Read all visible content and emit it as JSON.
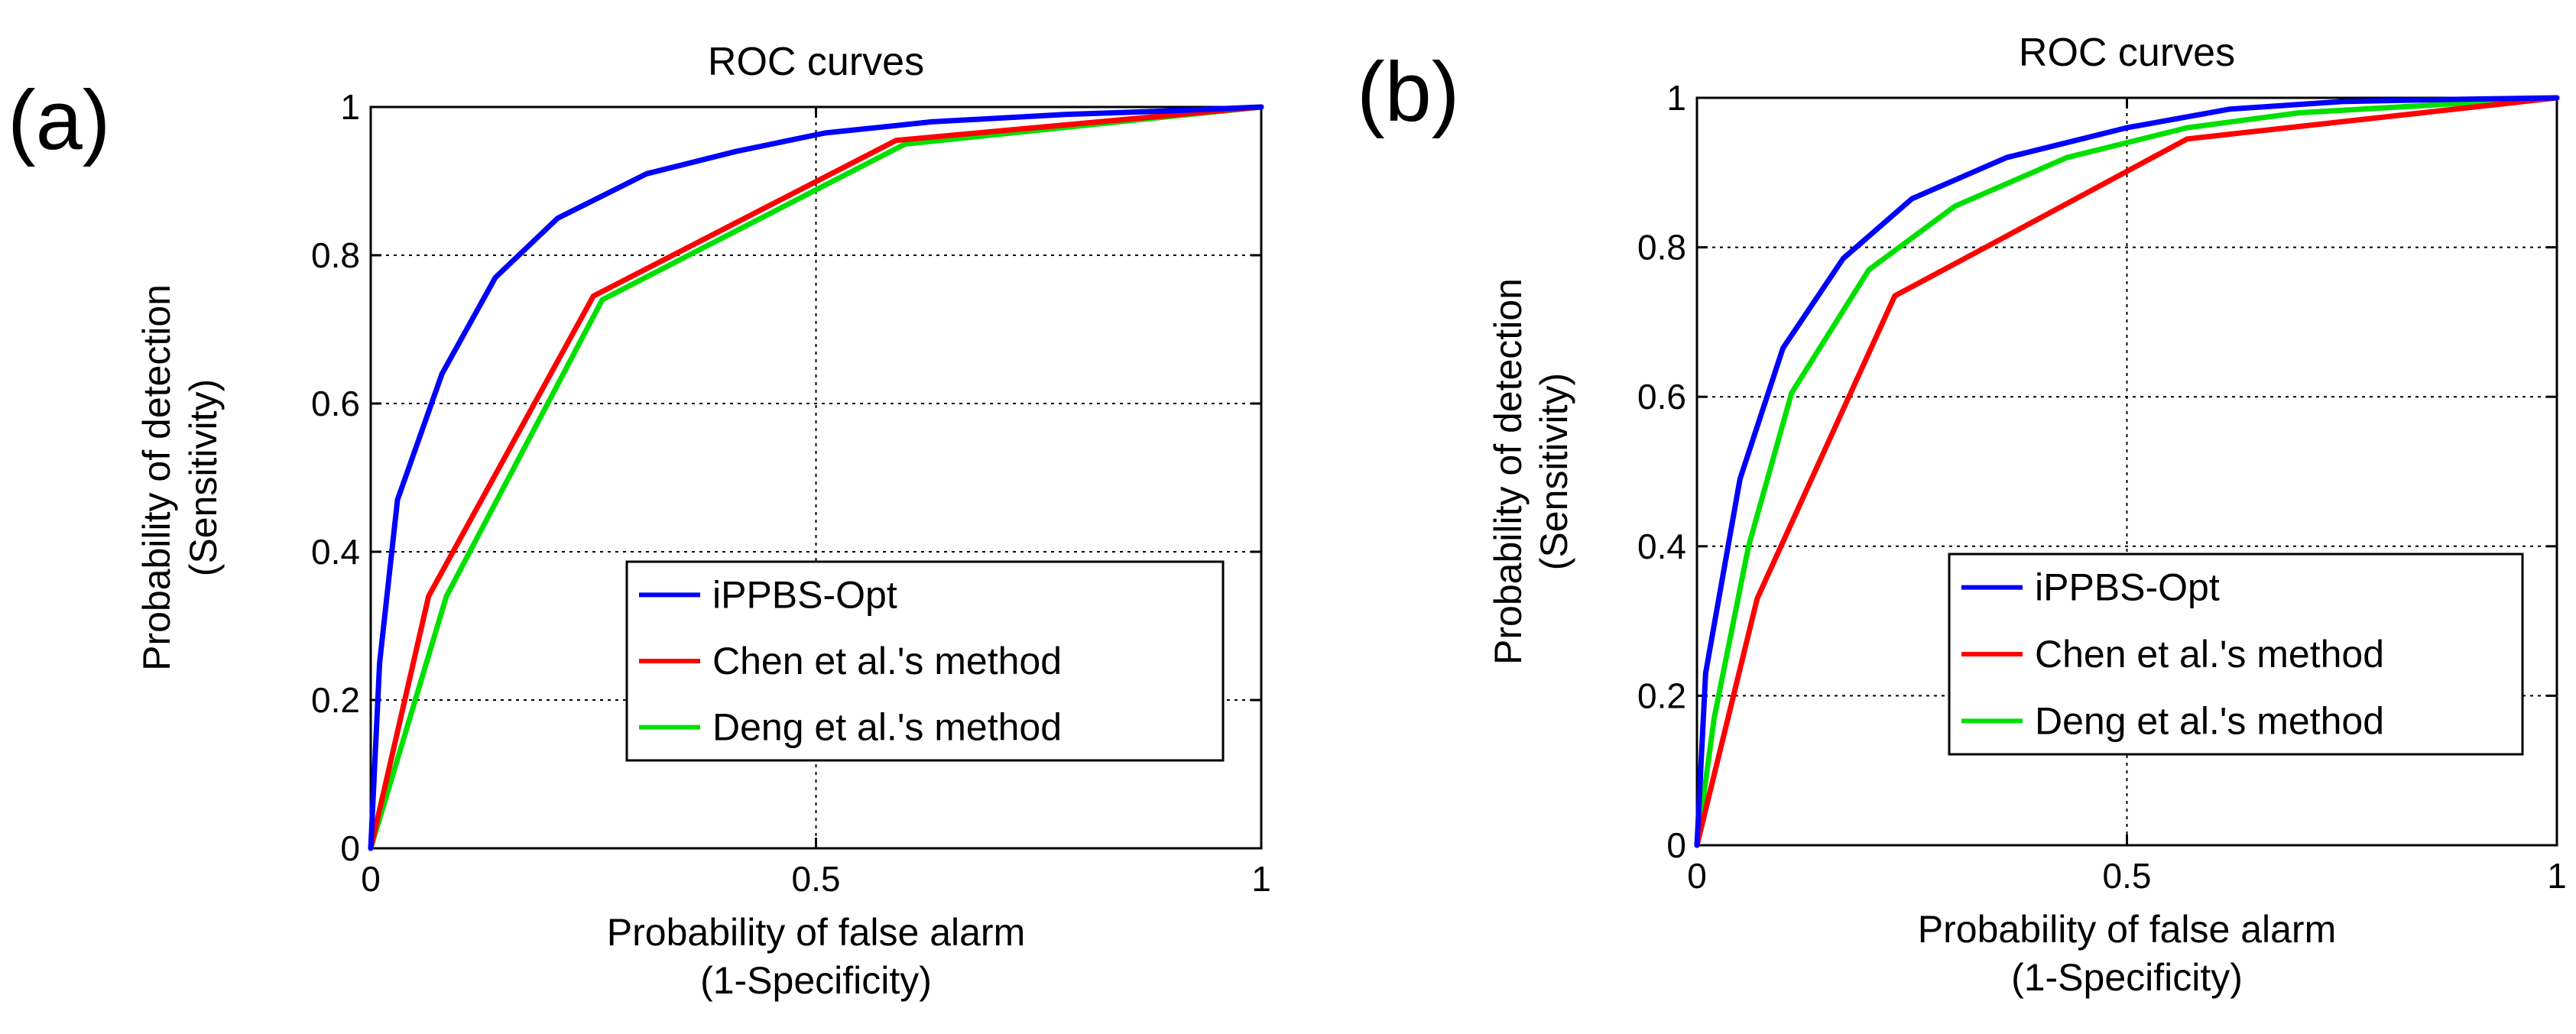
{
  "chart_data": [
    {
      "panel_label": "(a)",
      "type": "line",
      "title": "ROC curves",
      "xlabel": [
        "Probability of false alarm",
        "(1-Specificity)"
      ],
      "ylabel": [
        "Probability of detection",
        "(Sensitivity)"
      ],
      "xlim": [
        0,
        1
      ],
      "ylim": [
        0,
        1
      ],
      "xticks": [
        0,
        0.5,
        1
      ],
      "xtick_labels": [
        "0",
        "0.5",
        "1"
      ],
      "yticks": [
        0,
        0.2,
        0.4,
        0.6,
        0.8,
        1
      ],
      "ytick_labels": [
        "0",
        "0.2",
        "0.4",
        "0.6",
        "0.8",
        "1"
      ],
      "grid": true,
      "legend_position": "bottom-right",
      "series": [
        {
          "name": "iPPBS-Opt",
          "color": "#0000ff",
          "x": [
            0,
            0.01,
            0.03,
            0.08,
            0.14,
            0.21,
            0.31,
            0.41,
            0.51,
            0.63,
            0.78,
            0.9,
            1
          ],
          "y": [
            0,
            0.25,
            0.47,
            0.64,
            0.77,
            0.85,
            0.91,
            0.94,
            0.965,
            0.98,
            0.99,
            0.995,
            1
          ]
        },
        {
          "name": "Chen et al.'s method",
          "color": "#ff0000",
          "x": [
            0,
            0.065,
            0.25,
            0.59,
            1
          ],
          "y": [
            0,
            0.34,
            0.745,
            0.955,
            1
          ]
        },
        {
          "name": "Deng et al.'s method",
          "color": "#00e000",
          "x": [
            0,
            0.085,
            0.26,
            0.6,
            1
          ],
          "y": [
            0,
            0.34,
            0.74,
            0.95,
            1
          ]
        }
      ]
    },
    {
      "panel_label": "(b)",
      "type": "line",
      "title": "ROC curves",
      "xlabel": [
        "Probability of false alarm",
        "(1-Specificity)"
      ],
      "ylabel": [
        "Probability of detection",
        "(Sensitivity)"
      ],
      "xlim": [
        0,
        1
      ],
      "ylim": [
        0,
        1
      ],
      "xticks": [
        0,
        0.5,
        1
      ],
      "xtick_labels": [
        "0",
        "0.5",
        "1"
      ],
      "yticks": [
        0,
        0.2,
        0.4,
        0.6,
        0.8,
        1
      ],
      "ytick_labels": [
        "0",
        "0.2",
        "0.4",
        "0.6",
        "0.8",
        "1"
      ],
      "grid": true,
      "legend_position": "bottom-right",
      "series": [
        {
          "name": "iPPBS-Opt",
          "color": "#0000ff",
          "x": [
            0,
            0.01,
            0.05,
            0.1,
            0.17,
            0.25,
            0.36,
            0.5,
            0.62,
            0.75,
            0.88,
            1
          ],
          "y": [
            0,
            0.23,
            0.49,
            0.665,
            0.785,
            0.865,
            0.92,
            0.96,
            0.985,
            0.995,
            0.998,
            1
          ]
        },
        {
          "name": "Chen et al.'s method",
          "color": "#ff0000",
          "x": [
            0,
            0.07,
            0.23,
            0.36,
            0.57,
            1
          ],
          "y": [
            0,
            0.33,
            0.735,
            0.815,
            0.945,
            1
          ]
        },
        {
          "name": "Deng et al.'s method",
          "color": "#00e000",
          "x": [
            0,
            0.02,
            0.06,
            0.11,
            0.2,
            0.3,
            0.43,
            0.57,
            0.7,
            0.85,
            1
          ],
          "y": [
            0,
            0.17,
            0.4,
            0.605,
            0.77,
            0.855,
            0.92,
            0.96,
            0.98,
            0.99,
            1
          ]
        }
      ]
    }
  ]
}
